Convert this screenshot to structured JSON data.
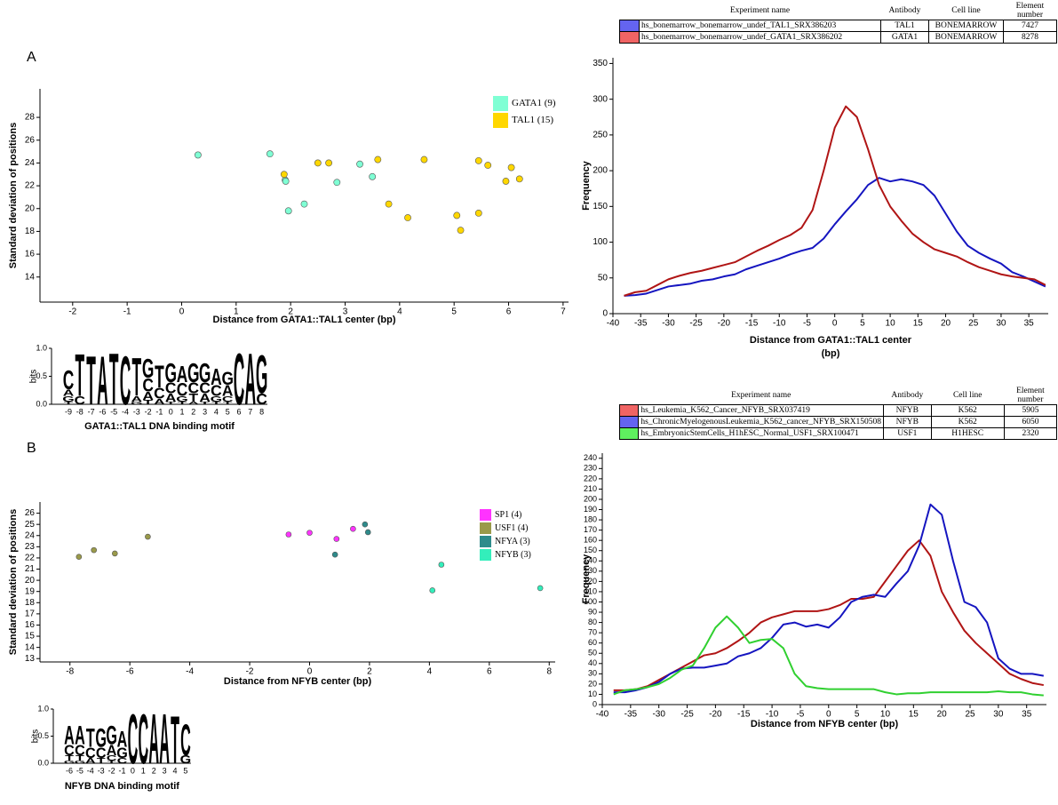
{
  "panel_labels": [
    "A",
    "B"
  ],
  "chart_data": [
    {
      "type": "scatter",
      "xlabel": "Distance from GATA1::TAL1 center (bp)",
      "ylabel": "Standard deviation of positions",
      "xlim": [
        -2.6,
        7.1
      ],
      "ylim": [
        11.8,
        30.5
      ],
      "xticks": [
        -2,
        -1,
        0,
        1,
        2,
        3,
        4,
        5,
        6,
        7
      ],
      "yticks": [
        14,
        16,
        18,
        20,
        22,
        24,
        26,
        28
      ],
      "legend": "upper right",
      "series": [
        {
          "name": "GATA1 (9)",
          "color": "#7fffd4",
          "x": [
            0.3,
            1.62,
            1.9,
            1.91,
            1.96,
            2.25,
            2.85,
            3.27,
            3.5
          ],
          "values": [
            24.7,
            24.8,
            22.5,
            22.4,
            19.8,
            20.4,
            22.3,
            23.9,
            22.8
          ]
        },
        {
          "name": "TAL1 (15)",
          "color": "#ffd700",
          "x": [
            1.88,
            2.5,
            2.7,
            3.6,
            3.8,
            4.15,
            4.45,
            5.05,
            5.12,
            5.45,
            5.45,
            5.62,
            5.95,
            6.05,
            6.2
          ],
          "values": [
            23.0,
            24.0,
            24.0,
            24.3,
            20.4,
            19.2,
            24.3,
            19.4,
            18.1,
            19.6,
            24.2,
            23.8,
            22.4,
            23.6,
            22.6
          ]
        }
      ]
    },
    {
      "type": "line",
      "xlabel": [
        "Distance from GATA1::TAL1 center",
        "(bp)"
      ],
      "ylabel": "Frequency",
      "xlim": [
        -40,
        38.5
      ],
      "ylim": [
        0,
        358
      ],
      "xticks": [
        -40,
        -35,
        -30,
        -25,
        -20,
        -15,
        -10,
        -5,
        0,
        5,
        10,
        15,
        20,
        25,
        30,
        35
      ],
      "yticks": [
        0,
        50,
        100,
        150,
        200,
        250,
        300,
        350
      ],
      "x": [
        -38,
        -36,
        -34,
        -32,
        -30,
        -28,
        -26,
        -24,
        -22,
        -20,
        -18,
        -16,
        -14,
        -12,
        -10,
        -8,
        -6,
        -4,
        -2,
        0,
        2,
        4,
        6,
        8,
        10,
        12,
        14,
        16,
        18,
        20,
        22,
        24,
        26,
        28,
        30,
        32,
        34,
        36,
        38
      ],
      "series": [
        {
          "color": "#1515c0",
          "values": [
            25,
            26,
            28,
            33,
            38,
            40,
            42,
            46,
            48,
            52,
            55,
            62,
            67,
            72,
            77,
            83,
            88,
            92,
            105,
            125,
            143,
            160,
            180,
            190,
            185,
            188,
            185,
            180,
            165,
            140,
            115,
            95,
            85,
            77,
            70,
            58,
            52,
            45,
            38
          ]
        },
        {
          "color": "#b01515",
          "values": [
            25,
            30,
            32,
            40,
            48,
            53,
            57,
            60,
            64,
            68,
            72,
            80,
            88,
            95,
            103,
            110,
            120,
            145,
            200,
            260,
            290,
            275,
            230,
            180,
            150,
            130,
            112,
            100,
            90,
            85,
            80,
            72,
            65,
            60,
            55,
            52,
            50,
            48,
            40
          ]
        }
      ]
    },
    {
      "type": "scatter",
      "xlabel": "Distance from NFYB center (bp)",
      "ylabel": "Standard deviation of positions",
      "xlim": [
        -9,
        8.2
      ],
      "ylim": [
        12.7,
        27
      ],
      "xticks": [
        -8,
        -6,
        -4,
        -2,
        0,
        2,
        4,
        6,
        8
      ],
      "yticks": [
        13,
        14,
        15,
        16,
        17,
        18,
        19,
        20,
        21,
        22,
        23,
        24,
        25,
        26
      ],
      "legend": "upper right",
      "series": [
        {
          "name": "SP1 (4)",
          "color": "#ff33ff",
          "x": [
            -0.7,
            0,
            0.9,
            1.45
          ],
          "values": [
            24.1,
            24.25,
            23.7,
            24.6
          ]
        },
        {
          "name": "USF1 (4)",
          "color": "#9a9a4a",
          "x": [
            -7.7,
            -7.2,
            -6.5,
            -5.4
          ],
          "values": [
            22.1,
            22.7,
            22.4,
            23.9
          ]
        },
        {
          "name": "NFYA (3)",
          "color": "#2e8b8b",
          "x": [
            0.85,
            1.85,
            1.95
          ],
          "values": [
            22.3,
            25.0,
            24.3
          ]
        },
        {
          "name": "NFYB (3)",
          "color": "#33eebb",
          "x": [
            4.1,
            4.4,
            7.7
          ],
          "values": [
            19.1,
            21.4,
            19.3
          ]
        }
      ]
    },
    {
      "type": "line",
      "xlabel": [
        "Distance from NFYB center (bp)"
      ],
      "ylabel": "Frequency",
      "xlim": [
        -40,
        38.5
      ],
      "ylim": [
        0,
        245
      ],
      "xticks": [
        -40,
        -35,
        -30,
        -25,
        -20,
        -15,
        -10,
        -5,
        0,
        5,
        10,
        15,
        20,
        25,
        30,
        35
      ],
      "yticks": [
        0,
        10,
        20,
        30,
        40,
        50,
        60,
        70,
        80,
        90,
        100,
        110,
        120,
        130,
        140,
        150,
        160,
        170,
        180,
        190,
        200,
        210,
        220,
        230,
        240
      ],
      "x": [
        -38,
        -36,
        -34,
        -32,
        -30,
        -28,
        -26,
        -24,
        -22,
        -20,
        -18,
        -16,
        -14,
        -12,
        -10,
        -8,
        -6,
        -4,
        -2,
        0,
        2,
        4,
        6,
        8,
        10,
        12,
        14,
        16,
        18,
        20,
        22,
        24,
        26,
        28,
        30,
        32,
        34,
        36,
        38
      ],
      "series": [
        {
          "color": "#b01515",
          "values": [
            14,
            14,
            15,
            18,
            24,
            30,
            36,
            42,
            48,
            50,
            55,
            62,
            70,
            80,
            85,
            88,
            91,
            91,
            91,
            93,
            97,
            103,
            103,
            105,
            120,
            135,
            150,
            160,
            145,
            110,
            90,
            72,
            60,
            50,
            40,
            30,
            25,
            21,
            19
          ]
        },
        {
          "color": "#1515c0",
          "values": [
            12,
            12,
            14,
            17,
            22,
            30,
            35,
            36,
            36,
            38,
            40,
            47,
            50,
            55,
            65,
            78,
            80,
            76,
            78,
            75,
            85,
            100,
            105,
            107,
            105,
            118,
            130,
            155,
            195,
            185,
            140,
            100,
            95,
            80,
            45,
            35,
            30,
            30,
            28
          ]
        },
        {
          "color": "#30d030",
          "values": [
            10,
            14,
            15,
            17,
            20,
            26,
            34,
            38,
            55,
            75,
            86,
            75,
            60,
            63,
            64,
            55,
            30,
            18,
            16,
            15,
            15,
            15,
            15,
            15,
            12,
            10,
            11,
            11,
            12,
            12,
            12,
            12,
            12,
            12,
            13,
            12,
            12,
            10,
            9
          ]
        }
      ]
    }
  ],
  "tables": [
    {
      "header": [
        "Experiment name",
        "Antibody",
        "Cell line",
        "Element number"
      ],
      "rows": [
        {
          "color": "#6464f0",
          "cells": [
            "hs_bonemarrow_bonemarrow_undef_TAL1_SRX386203",
            "TAL1",
            "BONEMARROW",
            "7427"
          ]
        },
        {
          "color": "#f06464",
          "cells": [
            "hs_bonemarrow_bonemarrow_undef_GATA1_SRX386202",
            "GATA1",
            "BONEMARROW",
            "8278"
          ]
        }
      ]
    },
    {
      "header": [
        "Experiment name",
        "Antibody",
        "Cell line",
        "Element number"
      ],
      "rows": [
        {
          "color": "#f06464",
          "cells": [
            "hs_Leukemia_K562_Cancer_NFYB_SRX037419",
            "NFYB",
            "K562",
            "5905"
          ]
        },
        {
          "color": "#6464f0",
          "cells": [
            "hs_ChronicMyelogenousLeukemia_K562_cancer_NFYB_SRX150508",
            "NFYB",
            "K562",
            "6050"
          ]
        },
        {
          "color": "#5ff05f",
          "cells": [
            "hs_EmbryonicStemCells_H1hESC_Normal_USF1_SRX100471",
            "USF1",
            "H1HESC",
            "2320"
          ]
        }
      ]
    }
  ],
  "motifs": [
    {
      "title": "GATA1::TAL1 DNA binding motif",
      "ylabel": "bits",
      "ylim": [
        0,
        1
      ],
      "yticks": [
        {
          "value": 0,
          "label": "0.0"
        },
        {
          "value": 0.5,
          "label": "0.5"
        },
        {
          "value": 1,
          "label": "1.0"
        }
      ],
      "colors": {
        "A": "#1e8c1e",
        "C": "#2020d0",
        "G": "#f0a020",
        "T": "#e01010"
      },
      "positions": [
        -9,
        -8,
        -7,
        -6,
        -5,
        -4,
        -3,
        -2,
        -1,
        0,
        1,
        2,
        3,
        4,
        5,
        6,
        7,
        8
      ],
      "stacks": [
        [
          {
            "letter": "C",
            "bits": 0.35
          },
          {
            "letter": "A",
            "bits": 0.12
          },
          {
            "letter": "G",
            "bits": 0.1
          },
          {
            "letter": "T",
            "bits": 0.05
          }
        ],
        [
          {
            "letter": "T",
            "bits": 0.78
          },
          {
            "letter": "C",
            "bits": 0.15
          }
        ],
        [
          {
            "letter": "T",
            "bits": 0.9
          }
        ],
        [
          {
            "letter": "A",
            "bits": 0.9
          }
        ],
        [
          {
            "letter": "T",
            "bits": 0.95
          }
        ],
        [
          {
            "letter": "C",
            "bits": 0.9
          }
        ],
        [
          {
            "letter": "T",
            "bits": 0.7
          },
          {
            "letter": "A",
            "bits": 0.1
          },
          {
            "letter": "G",
            "bits": 0.05
          }
        ],
        [
          {
            "letter": "G",
            "bits": 0.35
          },
          {
            "letter": "C",
            "bits": 0.25
          },
          {
            "letter": "A",
            "bits": 0.15
          },
          {
            "letter": "T",
            "bits": 0.08
          }
        ],
        [
          {
            "letter": "T",
            "bits": 0.4
          },
          {
            "letter": "C",
            "bits": 0.2
          },
          {
            "letter": "A",
            "bits": 0.1
          }
        ],
        [
          {
            "letter": "G",
            "bits": 0.35
          },
          {
            "letter": "C",
            "bits": 0.2
          },
          {
            "letter": "A",
            "bits": 0.15
          },
          {
            "letter": "T",
            "bits": 0.05
          }
        ],
        [
          {
            "letter": "A",
            "bits": 0.3
          },
          {
            "letter": "C",
            "bits": 0.25
          },
          {
            "letter": "G",
            "bits": 0.1
          },
          {
            "letter": "T",
            "bits": 0.05
          }
        ],
        [
          {
            "letter": "G",
            "bits": 0.35
          },
          {
            "letter": "C",
            "bits": 0.2
          },
          {
            "letter": "T",
            "bits": 0.15
          },
          {
            "letter": "A",
            "bits": 0.05
          }
        ],
        [
          {
            "letter": "G",
            "bits": 0.35
          },
          {
            "letter": "C",
            "bits": 0.2
          },
          {
            "letter": "A",
            "bits": 0.15
          },
          {
            "letter": "T",
            "bits": 0.05
          }
        ],
        [
          {
            "letter": "A",
            "bits": 0.3
          },
          {
            "letter": "C",
            "bits": 0.2
          },
          {
            "letter": "G",
            "bits": 0.1
          },
          {
            "letter": "T",
            "bits": 0.05
          }
        ],
        [
          {
            "letter": "G",
            "bits": 0.25
          },
          {
            "letter": "A",
            "bits": 0.2
          },
          {
            "letter": "C",
            "bits": 0.1
          },
          {
            "letter": "T",
            "bits": 0.05
          }
        ],
        [
          {
            "letter": "C",
            "bits": 0.95
          }
        ],
        [
          {
            "letter": "A",
            "bits": 0.95
          }
        ],
        [
          {
            "letter": "G",
            "bits": 0.7
          },
          {
            "letter": "C",
            "bits": 0.2
          }
        ]
      ]
    },
    {
      "title": "NFYB DNA binding motif",
      "ylabel": "bits",
      "ylim": [
        0,
        1
      ],
      "yticks": [
        {
          "value": 0,
          "label": "0.0"
        },
        {
          "value": 0.5,
          "label": "0.5"
        },
        {
          "value": 1,
          "label": "1.0"
        }
      ],
      "colors": {
        "A": "#1e8c1e",
        "C": "#2020d0",
        "G": "#f0a020",
        "T": "#e01010"
      },
      "positions": [
        -6,
        -5,
        -4,
        -3,
        -2,
        -1,
        0,
        1,
        2,
        3,
        4,
        5
      ],
      "stacks": [
        [
          {
            "letter": "A",
            "bits": 0.35
          },
          {
            "letter": "C",
            "bits": 0.2
          },
          {
            "letter": "T",
            "bits": 0.1
          },
          {
            "letter": "G",
            "bits": 0.05
          }
        ],
        [
          {
            "letter": "A",
            "bits": 0.35
          },
          {
            "letter": "C",
            "bits": 0.2
          },
          {
            "letter": "T",
            "bits": 0.1
          },
          {
            "letter": "G",
            "bits": 0.05
          }
        ],
        [
          {
            "letter": "T",
            "bits": 0.35
          },
          {
            "letter": "C",
            "bits": 0.2
          },
          {
            "letter": "A",
            "bits": 0.1
          }
        ],
        [
          {
            "letter": "G",
            "bits": 0.35
          },
          {
            "letter": "C",
            "bits": 0.2
          },
          {
            "letter": "T",
            "bits": 0.1
          }
        ],
        [
          {
            "letter": "G",
            "bits": 0.35
          },
          {
            "letter": "A",
            "bits": 0.2
          },
          {
            "letter": "C",
            "bits": 0.1
          },
          {
            "letter": "T",
            "bits": 0.05
          }
        ],
        [
          {
            "letter": "A",
            "bits": 0.3
          },
          {
            "letter": "G",
            "bits": 0.2
          },
          {
            "letter": "C",
            "bits": 0.1
          }
        ],
        [
          {
            "letter": "C",
            "bits": 0.95
          }
        ],
        [
          {
            "letter": "C",
            "bits": 0.95
          }
        ],
        [
          {
            "letter": "A",
            "bits": 0.95
          }
        ],
        [
          {
            "letter": "A",
            "bits": 0.95
          }
        ],
        [
          {
            "letter": "T",
            "bits": 0.9
          }
        ],
        [
          {
            "letter": "C",
            "bits": 0.6
          },
          {
            "letter": "G",
            "bits": 0.15
          }
        ]
      ]
    }
  ]
}
